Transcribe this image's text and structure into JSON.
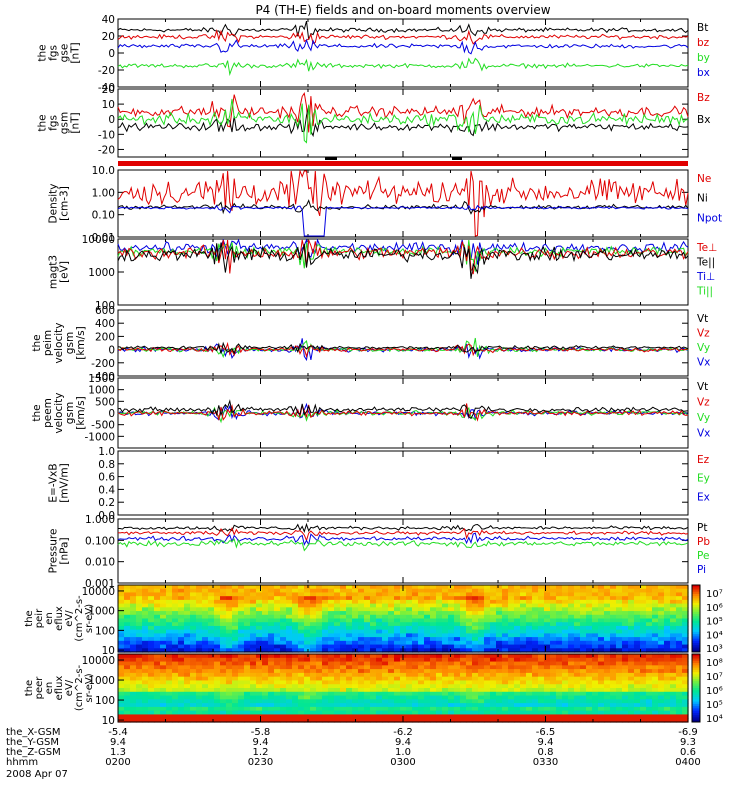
{
  "title": "P4 (TH-E) fields and on-board moments overview",
  "colors": {
    "black": "#000000",
    "red": "#e00000",
    "green": "#22dd22",
    "blue": "#0000e0"
  },
  "chart_data": {
    "type": "line",
    "panels": [
      {
        "id": "fgs-gse",
        "ylabel": [
          "the",
          "fgs",
          "gse",
          "[nT]"
        ],
        "ylim": [
          -40,
          40
        ],
        "ticks": [
          "40",
          "20",
          "0",
          "-20",
          "-40"
        ],
        "tickvals": [
          40,
          20,
          0,
          -20,
          -40
        ],
        "legend": [
          {
            "label": "Bt",
            "color": "black"
          },
          {
            "label": "bz",
            "color": "red"
          },
          {
            "label": "by",
            "color": "green"
          },
          {
            "label": "bx",
            "color": "blue"
          }
        ],
        "series": [
          {
            "name": "Bt",
            "color": "black",
            "base": 27,
            "noise": 2
          },
          {
            "name": "bz",
            "color": "red",
            "base": 19,
            "noise": 2
          },
          {
            "name": "by",
            "color": "green",
            "base": -15,
            "noise": 2
          },
          {
            "name": "bx",
            "color": "blue",
            "base": 8,
            "noise": 2
          }
        ]
      },
      {
        "id": "fgs-gsm",
        "ylabel": [
          "the",
          "fgs",
          "gsm",
          "[nT]"
        ],
        "ylim": [
          -25,
          20
        ],
        "ticks": [
          "20",
          "10",
          "0",
          "-10",
          "-20"
        ],
        "tickvals": [
          20,
          10,
          0,
          -10,
          -20
        ],
        "legend": [
          {
            "label": "Bz",
            "color": "red"
          },
          {
            "label": "Bx",
            "color": "black"
          }
        ],
        "series": [
          {
            "name": "Bz",
            "color": "red",
            "base": 5,
            "noise": 3
          },
          {
            "name": "Bx",
            "color": "black",
            "base": -5,
            "noise": 2
          },
          {
            "name": "By",
            "color": "green",
            "base": 0,
            "noise": 3
          }
        ]
      },
      {
        "id": "density",
        "ylabel": [
          "Density",
          "[cm-3]"
        ],
        "ylim": [
          0.01,
          10
        ],
        "log": true,
        "ticks": [
          "10.0",
          "1.00",
          "0.10",
          "0.01"
        ],
        "tickvals": [
          10,
          1,
          0.1,
          0.01
        ],
        "legend": [
          {
            "label": "Ne",
            "color": "red"
          },
          {
            "label": "Ni",
            "color": "black"
          },
          {
            "label": "Npot",
            "color": "blue"
          }
        ],
        "series": [
          {
            "name": "Ne",
            "color": "red",
            "base": 1.0,
            "noise": 0.6
          },
          {
            "name": "Ni",
            "color": "black",
            "base": 0.22,
            "noise": 0.1
          },
          {
            "name": "Npot",
            "color": "blue",
            "base": 0.2,
            "noise": 0.05
          }
        ]
      },
      {
        "id": "temperature",
        "ylabel": [
          "magt3",
          "[eV]"
        ],
        "ylim": [
          100,
          10000
        ],
        "log": true,
        "ticks": [
          "10000",
          "1000",
          "100"
        ],
        "tickvals": [
          10000,
          1000,
          100
        ],
        "legend": [
          {
            "label": "Te⊥",
            "color": "red"
          },
          {
            "label": "Te||",
            "color": "black"
          },
          {
            "label": "Ti⊥",
            "color": "blue"
          },
          {
            "label": "Ti||",
            "color": "green"
          }
        ],
        "series": [
          {
            "name": "Ti⊥",
            "color": "blue",
            "base": 5500,
            "noise": 0.15
          },
          {
            "name": "Ti||",
            "color": "green",
            "base": 4200,
            "noise": 0.15
          },
          {
            "name": "Te⊥",
            "color": "red",
            "base": 3800,
            "noise": 0.2
          },
          {
            "name": "Te||",
            "color": "black",
            "base": 3300,
            "noise": 0.2
          }
        ]
      },
      {
        "id": "peim-velocity",
        "ylabel": [
          "the",
          "peim",
          "velocity",
          "gsm",
          "[km/s]"
        ],
        "ylim": [
          -400,
          600
        ],
        "ticks": [
          "600",
          "400",
          "200",
          "0",
          "-200",
          "-400"
        ],
        "tickvals": [
          600,
          400,
          200,
          0,
          -200,
          -400
        ],
        "legend": [
          {
            "label": "Vt",
            "color": "black"
          },
          {
            "label": "Vz",
            "color": "red"
          },
          {
            "label": "Vy",
            "color": "green"
          },
          {
            "label": "Vx",
            "color": "blue"
          }
        ],
        "series": [
          {
            "name": "Vx",
            "color": "blue",
            "base": 0,
            "noise": 30
          },
          {
            "name": "Vy",
            "color": "green",
            "base": 0,
            "noise": 25
          },
          {
            "name": "Vz",
            "color": "red",
            "base": 0,
            "noise": 25
          },
          {
            "name": "Vt",
            "color": "black",
            "base": 30,
            "noise": 20
          }
        ]
      },
      {
        "id": "peem-velocity",
        "ylabel": [
          "the",
          "peem",
          "velocity",
          "gsm",
          "[km/s]"
        ],
        "ylim": [
          -1500,
          1500
        ],
        "ticks": [
          "1500",
          "1000",
          "500",
          "0",
          "-500",
          "-1000"
        ],
        "tickvals": [
          1500,
          1000,
          500,
          0,
          -500,
          -1000
        ],
        "legend": [
          {
            "label": "Vt",
            "color": "black"
          },
          {
            "label": "Vz",
            "color": "red"
          },
          {
            "label": "Vy",
            "color": "green"
          },
          {
            "label": "Vx",
            "color": "blue"
          }
        ],
        "series": [
          {
            "name": "Vx",
            "color": "blue",
            "base": 0,
            "noise": 80
          },
          {
            "name": "Vy",
            "color": "green",
            "base": 0,
            "noise": 80
          },
          {
            "name": "Vz",
            "color": "red",
            "base": 0,
            "noise": 80
          },
          {
            "name": "Vt",
            "color": "black",
            "base": 150,
            "noise": 80
          }
        ]
      },
      {
        "id": "efield",
        "ylabel": [
          "E=-VxB",
          "[mV/m]"
        ],
        "ylim": [
          0,
          1
        ],
        "ticks": [
          "1.0",
          "0.8",
          "0.6",
          "0.4",
          "0.2",
          "0.0"
        ],
        "tickvals": [
          1,
          0.8,
          0.6,
          0.4,
          0.2,
          0
        ],
        "legend": [
          {
            "label": "Ez",
            "color": "red"
          },
          {
            "label": "Ey",
            "color": "green"
          },
          {
            "label": "Ex",
            "color": "blue"
          }
        ],
        "series": []
      },
      {
        "id": "pressure",
        "ylabel": [
          "Pressure",
          "[nPa]"
        ],
        "ylim": [
          0.001,
          1
        ],
        "log": true,
        "ticks": [
          "1.000",
          "0.100",
          "0.010",
          "0.001"
        ],
        "tickvals": [
          1,
          0.1,
          0.01,
          0.001
        ],
        "legend": [
          {
            "label": "Pt",
            "color": "black"
          },
          {
            "label": "Pb",
            "color": "red"
          },
          {
            "label": "Pe",
            "color": "green"
          },
          {
            "label": "Pi",
            "color": "blue"
          }
        ],
        "series": [
          {
            "name": "Pt",
            "color": "black",
            "base": 0.38,
            "noise": 0.08
          },
          {
            "name": "Pb",
            "color": "red",
            "base": 0.22,
            "noise": 0.08
          },
          {
            "name": "Pi",
            "color": "blue",
            "base": 0.12,
            "noise": 0.1
          },
          {
            "name": "Pe",
            "color": "green",
            "base": 0.07,
            "noise": 0.12
          }
        ]
      }
    ],
    "spectrograms": [
      {
        "id": "peir-en-eflux",
        "ylabel": [
          "the",
          "peir",
          "en",
          "eflux",
          "eV/",
          "(cm^2-s-",
          "sr-eV)"
        ],
        "ylim": [
          8,
          20000
        ],
        "ticks": [
          "10000",
          "1000",
          "100",
          "10"
        ],
        "tickvals": [
          10000,
          1000,
          100,
          10
        ],
        "colorbar": [
          "10⁷",
          "10⁶",
          "10⁵",
          "10⁴",
          "10³"
        ],
        "type": "ion"
      },
      {
        "id": "peer-en-eflux",
        "ylabel": [
          "the",
          "peer",
          "en",
          "eflux",
          "eV/",
          "(cm^2-s-",
          "sr-eV)"
        ],
        "ylim": [
          8,
          20000
        ],
        "ticks": [
          "10000",
          "1000",
          "100",
          "10"
        ],
        "tickvals": [
          10000,
          1000,
          100,
          10
        ],
        "colorbar": [
          "10⁸",
          "10⁷",
          "10⁶",
          "10⁵",
          "10⁴"
        ],
        "type": "electron"
      }
    ],
    "xaxis": {
      "rows": [
        {
          "label": "the_X-GSM",
          "values": [
            "-5.4",
            "-5.8",
            "-6.2",
            "-6.5",
            "-6.9"
          ]
        },
        {
          "label": "the_Y-GSM",
          "values": [
            "9.4",
            "9.4",
            "9.4",
            "9.4",
            "9.3"
          ]
        },
        {
          "label": "the_Z-GSM",
          "values": [
            "1.3",
            "1.2",
            "1.0",
            "0.8",
            "0.6"
          ]
        },
        {
          "label": "hhmm",
          "values": [
            "0200",
            "0230",
            "0300",
            "0330",
            "0400"
          ]
        }
      ],
      "date": "2008 Apr 07"
    }
  }
}
